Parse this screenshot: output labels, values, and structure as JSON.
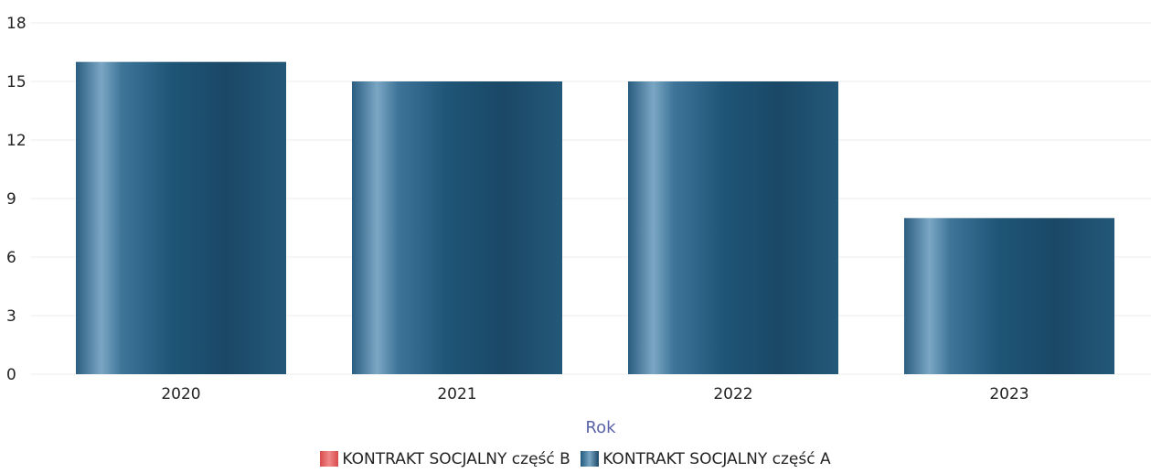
{
  "chart_data": {
    "type": "bar",
    "categories": [
      "2020",
      "2021",
      "2022",
      "2023"
    ],
    "series": [
      {
        "name": "KONTRAKT SOCJALNY część B",
        "values": [
          0,
          0,
          0,
          0
        ],
        "color": "#e8595a"
      },
      {
        "name": "KONTRAKT SOCJALNY część A",
        "values": [
          16,
          15,
          15,
          8
        ],
        "color": "#1f5a7e"
      }
    ],
    "title": "",
    "xlabel": "Rok",
    "ylabel": "",
    "ylim": [
      0,
      18
    ],
    "yticks": [
      0,
      3,
      6,
      9,
      12,
      15,
      18
    ],
    "grid": true,
    "legend_position": "bottom"
  }
}
